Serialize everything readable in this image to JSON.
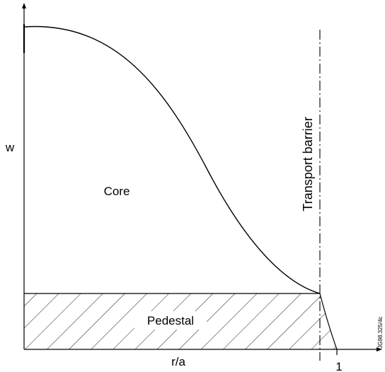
{
  "labels": {
    "y_axis": "w",
    "x_axis": "r/a",
    "x_tick_one": "1",
    "core": "Core",
    "pedestal": "Pedestal",
    "barrier": "Transport barrier",
    "figure_code": "JG98.325/4c"
  },
  "colors": {
    "line": "#000000",
    "background": "#ffffff"
  }
}
